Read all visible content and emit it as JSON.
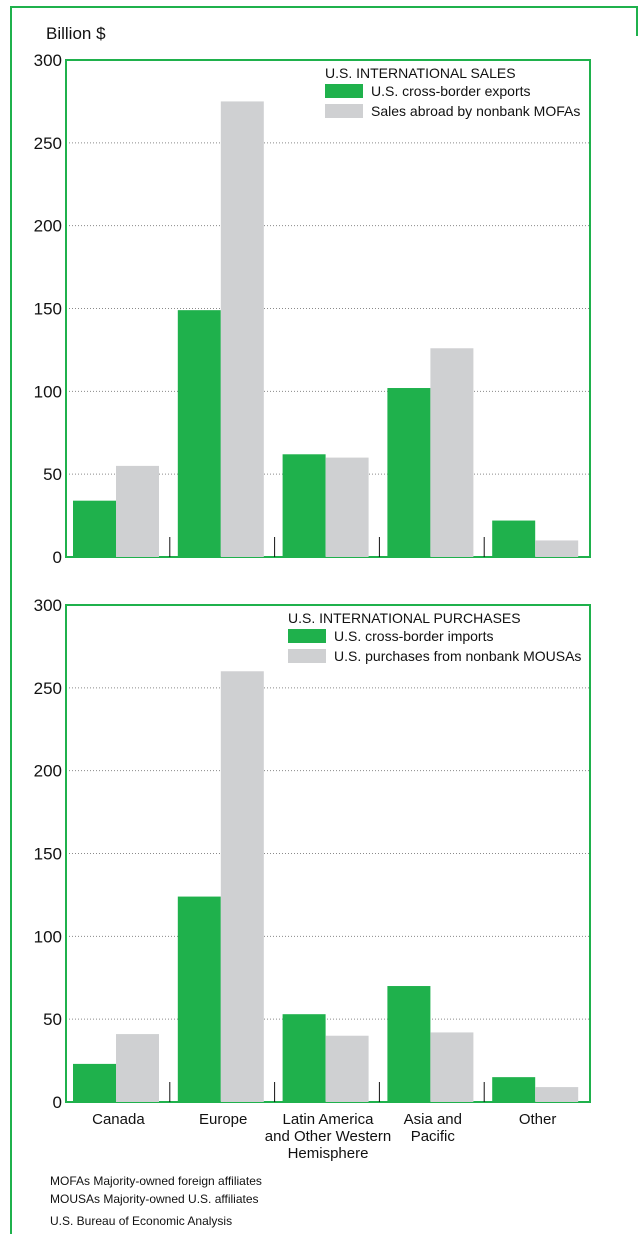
{
  "colors": {
    "accent": "#1fb14c",
    "primary": "#1fb14c",
    "secondary": "#cfd0d2",
    "frame": "#1fb14c"
  },
  "unit_label": "Billion $",
  "chart_data": [
    {
      "type": "bar",
      "title": "U.S. INTERNATIONAL SALES",
      "ylabel": "Billion $",
      "ylim": [
        0,
        300
      ],
      "yticks": [
        0,
        50,
        100,
        150,
        200,
        250,
        300
      ],
      "grid": true,
      "legend": "top-right",
      "categories": [
        "Canada",
        "Europe",
        "Latin America and Other Western Hemisphere",
        "Asia and Pacific",
        "Other"
      ],
      "series": [
        {
          "name": "U.S. cross-border exports",
          "color": "#1fb14c",
          "values": [
            34,
            149,
            62,
            102,
            22
          ]
        },
        {
          "name": "Sales abroad by nonbank MOFAs",
          "color": "#cfd0d2",
          "values": [
            55,
            275,
            60,
            126,
            10
          ]
        }
      ]
    },
    {
      "type": "bar",
      "title": "U.S. INTERNATIONAL PURCHASES",
      "ylim": [
        0,
        300
      ],
      "yticks": [
        0,
        50,
        100,
        150,
        200,
        250,
        300
      ],
      "grid": true,
      "legend": "top-right",
      "categories": [
        "Canada",
        "Europe",
        "Latin America and Other Western Hemisphere",
        "Asia and Pacific",
        "Other"
      ],
      "category_label_lines": [
        [
          "Canada"
        ],
        [
          "Europe"
        ],
        [
          "Latin America",
          "and Other Western",
          "Hemisphere"
        ],
        [
          "Asia and",
          "Pacific"
        ],
        [
          "Other"
        ]
      ],
      "series": [
        {
          "name": "U.S. cross-border imports",
          "color": "#1fb14c",
          "values": [
            23,
            124,
            53,
            70,
            15
          ]
        },
        {
          "name": "U.S. purchases from nonbank MOUSAs",
          "color": "#cfd0d2",
          "values": [
            41,
            260,
            40,
            42,
            9
          ]
        }
      ]
    }
  ],
  "notes": [
    "MOFAs  Majority-owned foreign affiliates",
    "MOUSAs  Majority-owned U.S. affiliates"
  ],
  "source": "U.S. Bureau of Economic Analysis"
}
